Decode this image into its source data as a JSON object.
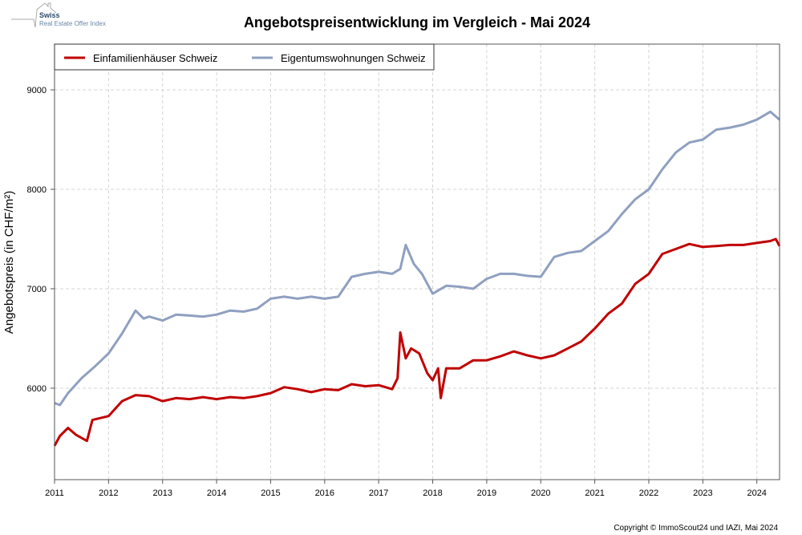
{
  "logo": {
    "line1": "Swiss",
    "line2": "Real Estate Offer Index"
  },
  "copyright": "Copyright © ImmoScout24 und IAZI, Mai 2024",
  "colors": {
    "efh": "#c00000",
    "etw": "#8fa0c0",
    "grid": "#cccccc"
  },
  "chart_data": {
    "type": "line",
    "title": "Angebotspreisentwicklung im Vergleich - Mai 2024",
    "xlabel": "",
    "ylabel": "Angebotspreis (in CHF/m²)",
    "xlim": [
      2011,
      2024.42
    ],
    "ylim": [
      5080,
      9460
    ],
    "xticks": [
      "2011",
      "2012",
      "2013",
      "2014",
      "2015",
      "2016",
      "2017",
      "2018",
      "2019",
      "2020",
      "2021",
      "2022",
      "2023",
      "2024"
    ],
    "yticks": [
      "6000",
      "7000",
      "8000",
      "9000"
    ],
    "grid": true,
    "legend_position": "top-left",
    "series": [
      {
        "name": "Einfamilienhäuser Schweiz",
        "color": "#c00000",
        "x": [
          2011.0,
          2011.1,
          2011.25,
          2011.4,
          2011.6,
          2011.7,
          2012.0,
          2012.25,
          2012.5,
          2012.75,
          2013.0,
          2013.25,
          2013.5,
          2013.75,
          2014.0,
          2014.25,
          2014.5,
          2014.75,
          2015.0,
          2015.25,
          2015.5,
          2015.75,
          2016.0,
          2016.25,
          2016.5,
          2016.75,
          2017.0,
          2017.25,
          2017.35,
          2017.4,
          2017.5,
          2017.6,
          2017.75,
          2017.9,
          2018.0,
          2018.1,
          2018.15,
          2018.25,
          2018.5,
          2018.75,
          2019.0,
          2019.25,
          2019.5,
          2019.75,
          2020.0,
          2020.25,
          2020.5,
          2020.75,
          2021.0,
          2021.25,
          2021.5,
          2021.75,
          2022.0,
          2022.25,
          2022.5,
          2022.75,
          2023.0,
          2023.25,
          2023.5,
          2023.75,
          2024.0,
          2024.25,
          2024.35,
          2024.42
        ],
        "values": [
          5420,
          5520,
          5600,
          5530,
          5470,
          5680,
          5720,
          5870,
          5930,
          5920,
          5870,
          5900,
          5890,
          5910,
          5890,
          5910,
          5900,
          5920,
          5950,
          6010,
          5990,
          5960,
          5990,
          5980,
          6040,
          6020,
          6030,
          5990,
          6100,
          6560,
          6300,
          6400,
          6350,
          6150,
          6080,
          6200,
          5900,
          6200,
          6200,
          6280,
          6280,
          6320,
          6370,
          6330,
          6300,
          6330,
          6400,
          6470,
          6600,
          6750,
          6850,
          7050,
          7150,
          7350,
          7400,
          7450,
          7420,
          7430,
          7440,
          7440,
          7460,
          7480,
          7500,
          7430
        ]
      },
      {
        "name": "Eigentumswohnungen Schweiz",
        "color": "#8fa0c0",
        "x": [
          2011.0,
          2011.1,
          2011.25,
          2011.5,
          2011.75,
          2012.0,
          2012.25,
          2012.5,
          2012.65,
          2012.75,
          2013.0,
          2013.25,
          2013.5,
          2013.75,
          2014.0,
          2014.25,
          2014.5,
          2014.75,
          2015.0,
          2015.25,
          2015.5,
          2015.75,
          2016.0,
          2016.25,
          2016.5,
          2016.75,
          2017.0,
          2017.25,
          2017.4,
          2017.5,
          2017.65,
          2017.8,
          2018.0,
          2018.25,
          2018.5,
          2018.75,
          2019.0,
          2019.25,
          2019.5,
          2019.75,
          2020.0,
          2020.25,
          2020.5,
          2020.75,
          2021.0,
          2021.25,
          2021.5,
          2021.75,
          2022.0,
          2022.25,
          2022.5,
          2022.75,
          2023.0,
          2023.25,
          2023.5,
          2023.75,
          2024.0,
          2024.25,
          2024.42
        ],
        "values": [
          5850,
          5830,
          5950,
          6100,
          6220,
          6350,
          6550,
          6780,
          6700,
          6720,
          6680,
          6740,
          6730,
          6720,
          6740,
          6780,
          6770,
          6800,
          6900,
          6920,
          6900,
          6920,
          6900,
          6920,
          7120,
          7150,
          7170,
          7150,
          7200,
          7440,
          7250,
          7150,
          6950,
          7030,
          7020,
          7000,
          7100,
          7150,
          7150,
          7130,
          7120,
          7320,
          7360,
          7380,
          7480,
          7580,
          7750,
          7900,
          8000,
          8200,
          8370,
          8470,
          8500,
          8600,
          8620,
          8650,
          8700,
          8780,
          8700
        ]
      }
    ]
  }
}
